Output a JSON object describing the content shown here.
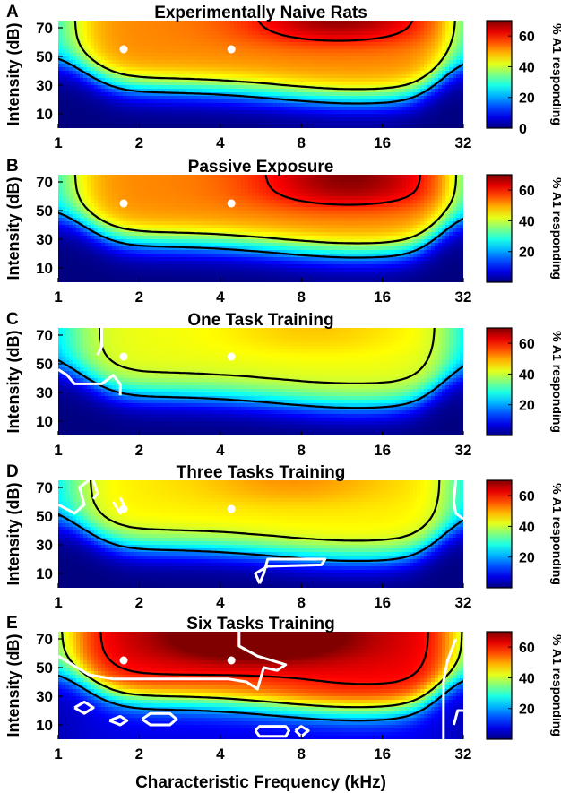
{
  "chart_data": {
    "type": "heatmap",
    "panels": [
      {
        "letter": "A",
        "title": "Experimentally Naive Rats",
        "level": 1.0,
        "bias": 0,
        "hot": [
          11,
          62
        ],
        "hotGain": 1.0,
        "colorbar_ticks": [
          "60",
          "40",
          "20",
          "0"
        ],
        "white_contours": []
      },
      {
        "letter": "B",
        "title": "Passive Exposure",
        "level": 1.0,
        "bias": 0,
        "hot": [
          12,
          55
        ],
        "hotGain": 1.0,
        "colorbar_ticks": [
          "60",
          "40",
          "20"
        ],
        "white_contours": []
      },
      {
        "letter": "C",
        "title": "One Task Training",
        "level": 0.82,
        "bias": 0,
        "hot": [
          9,
          60
        ],
        "hotGain": 0.35,
        "colorbar_ticks": [
          "60",
          "40",
          "20"
        ],
        "white_contours": [
          [
            [
              1.0,
              46
            ],
            [
              1.08,
              42
            ],
            [
              1.15,
              36
            ],
            [
              1.45,
              36
            ],
            [
              1.6,
              42
            ],
            [
              1.7,
              36
            ],
            [
              1.7,
              28
            ]
          ],
          [
            [
              1.45,
              75
            ],
            [
              1.45,
              62
            ],
            [
              1.4,
              56
            ]
          ]
        ]
      },
      {
        "letter": "D",
        "title": "Three Tasks Training",
        "level": 0.86,
        "bias": 0,
        "hot": [
          7.5,
          62
        ],
        "hotGain": 0.45,
        "colorbar_ticks": [
          "60",
          "40",
          "20"
        ],
        "white_contours": [
          [
            [
              1.0,
              58
            ],
            [
              1.15,
              52
            ],
            [
              1.25,
              58
            ],
            [
              1.2,
              70
            ],
            [
              1.3,
              75
            ]
          ],
          [
            [
              1.35,
              75
            ],
            [
              1.4,
              66
            ],
            [
              1.35,
              62
            ]
          ],
          [
            [
              1.6,
              60
            ],
            [
              1.7,
              52
            ],
            [
              1.75,
              58
            ],
            [
              1.7,
              63
            ]
          ],
          [
            [
              5.6,
              3
            ],
            [
              5.4,
              10
            ],
            [
              6.0,
              15
            ],
            [
              9.5,
              16
            ],
            [
              9.8,
              20
            ],
            [
              6.0,
              20
            ],
            [
              5.8,
              10
            ],
            [
              5.6,
              3
            ]
          ],
          [
            [
              30,
              75
            ],
            [
              29.5,
              60
            ],
            [
              30,
              52
            ],
            [
              32,
              48
            ]
          ]
        ]
      },
      {
        "letter": "E",
        "title": "Six Tasks Training",
        "level": 1.08,
        "bias": 6,
        "hot": [
          5.5,
          58
        ],
        "hotGain": 1.0,
        "colorbar_ticks": [
          "60",
          "40",
          "20"
        ],
        "white_contours": [
          [
            [
              1.0,
              58
            ],
            [
              1.3,
              45
            ],
            [
              1.6,
              42
            ],
            [
              4.3,
              42
            ],
            [
              5.0,
              40
            ],
            [
              5.5,
              35
            ],
            [
              5.8,
              50
            ],
            [
              6.5,
              48
            ],
            [
              7.0,
              52
            ],
            [
              5.5,
              58
            ],
            [
              4.7,
              65
            ],
            [
              4.7,
              75
            ]
          ],
          [
            [
              1.15,
              22
            ],
            [
              1.25,
              18
            ],
            [
              1.35,
              22
            ],
            [
              1.25,
              26
            ],
            [
              1.15,
              22
            ]
          ],
          [
            [
              1.55,
              13
            ],
            [
              1.7,
              10
            ],
            [
              1.8,
              13
            ],
            [
              1.7,
              16
            ],
            [
              1.55,
              13
            ]
          ],
          [
            [
              2.05,
              14
            ],
            [
              2.2,
              10
            ],
            [
              2.6,
              10
            ],
            [
              2.75,
              14
            ],
            [
              2.6,
              18
            ],
            [
              2.2,
              18
            ],
            [
              2.05,
              14
            ]
          ],
          [
            [
              5.4,
              6
            ],
            [
              5.6,
              2
            ],
            [
              7.0,
              2
            ],
            [
              7.2,
              6
            ],
            [
              7.0,
              9
            ],
            [
              5.6,
              9
            ],
            [
              5.4,
              6
            ]
          ],
          [
            [
              7.6,
              6
            ],
            [
              8.0,
              2
            ],
            [
              8.5,
              6
            ],
            [
              8.0,
              9
            ],
            [
              7.6,
              6
            ]
          ],
          [
            [
              27,
              0
            ],
            [
              27,
              40
            ],
            [
              28,
              55
            ],
            [
              30,
              70
            ]
          ],
          [
            [
              29.5,
              10
            ],
            [
              30.5,
              20
            ],
            [
              32,
              20
            ]
          ]
        ]
      }
    ],
    "x_ticks": [
      1,
      2,
      4,
      8,
      16,
      32
    ],
    "x_tick_labels": [
      "1",
      "2",
      "4",
      "8",
      "16",
      "32"
    ],
    "y_ticks": [
      70,
      50,
      30,
      10
    ],
    "y_tick_labels": [
      "70",
      "50",
      "30",
      "10"
    ],
    "xlim": [
      1,
      32
    ],
    "ylim": [
      0,
      75
    ],
    "xscale": "log2",
    "xlabel": "Characteristic Frequency (kHz)",
    "ylabel": "Intensity (dB)",
    "colorbar_label": "% A1 responding",
    "colorbar_range": [
      0,
      70
    ],
    "black_contour_levels": [
      20,
      40,
      60
    ],
    "markers": [
      {
        "x": 1.75,
        "y": 55
      },
      {
        "x": 4.4,
        "y": 55
      }
    ]
  }
}
